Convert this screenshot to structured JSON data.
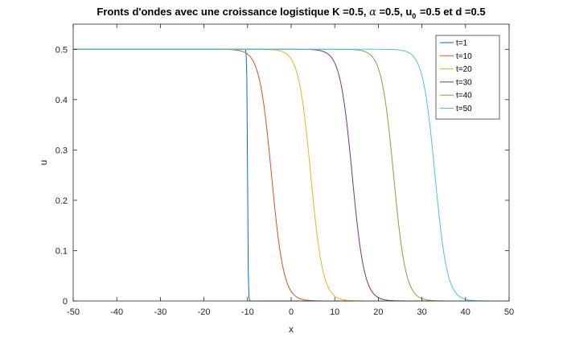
{
  "chart_data": {
    "type": "line",
    "title": {
      "part1": "Fronts d'ondes avec une croissance logistique K =0.5, ",
      "alpha_symbol": "α",
      "part2": " =0.5, u",
      "sub": "0",
      "part3": " =0.5 et d =0.5"
    },
    "xlabel": "x",
    "ylabel": "u",
    "xlim": [
      -50,
      50
    ],
    "ylim": [
      0,
      0.55
    ],
    "xticks": [
      "-50",
      "-40",
      "-30",
      "-20",
      "-10",
      "0",
      "10",
      "20",
      "30",
      "40",
      "50"
    ],
    "xtick_values": [
      -50,
      -40,
      -30,
      -20,
      -10,
      0,
      10,
      20,
      30,
      40,
      50
    ],
    "yticks": [
      "0",
      "0.1",
      "0.2",
      "0.3",
      "0.4",
      "0.5"
    ],
    "ytick_values": [
      0,
      0.1,
      0.2,
      0.3,
      0.4,
      0.5
    ],
    "grid": false,
    "legend_position": "top-right",
    "K": 0.5,
    "series": [
      {
        "name": "t=1",
        "color": "#0072BD",
        "front_x": -10,
        "width": 0.08
      },
      {
        "name": "t=10",
        "color": "#D95319",
        "front_x": -4.5,
        "width": 1.4
      },
      {
        "name": "t=20",
        "color": "#EDB120",
        "front_x": 4.5,
        "width": 1.4
      },
      {
        "name": "t=30",
        "color": "#7E2F8E",
        "front_x": 14,
        "width": 1.4
      },
      {
        "name": "t=40",
        "color": "#77AC30",
        "front_x": 23.5,
        "width": 1.4
      },
      {
        "name": "t=50",
        "color": "#4DBEEE",
        "front_x": 33,
        "width": 1.4
      }
    ]
  }
}
